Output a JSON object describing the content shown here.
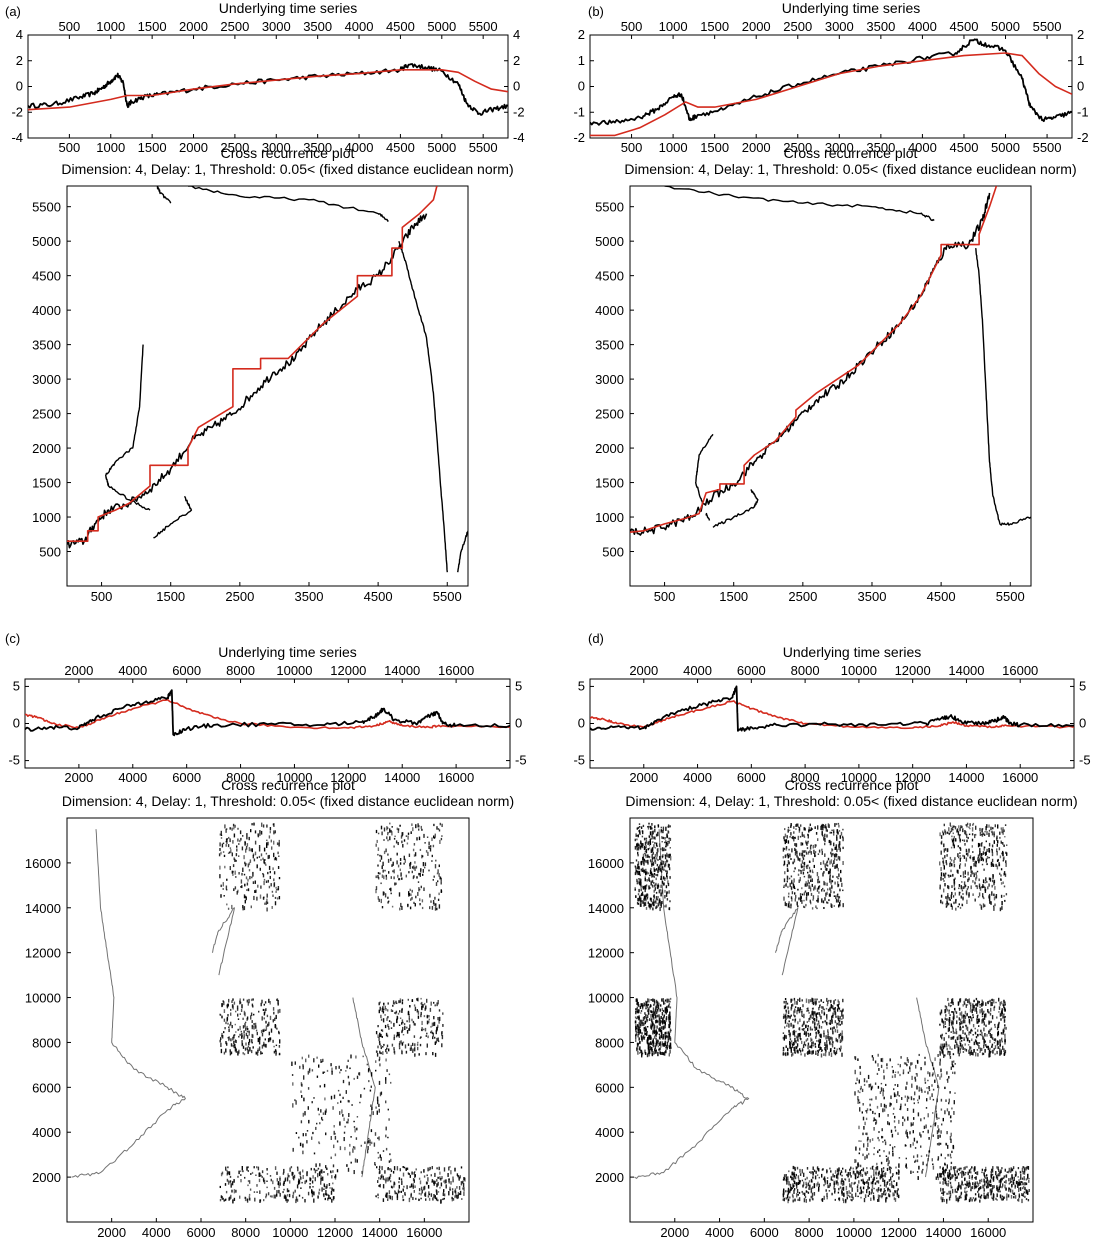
{
  "chart_data": [
    {
      "panel": "(a)",
      "type": "line",
      "subplot": "time-series",
      "title": "Underlying time series",
      "xlim": [
        0,
        5800
      ],
      "ylim": [
        -4,
        4
      ],
      "xticks": [
        500,
        1000,
        1500,
        2000,
        2500,
        3000,
        3500,
        4000,
        4500,
        5000,
        5500
      ],
      "yticks": [
        -4,
        -2,
        0,
        2,
        4
      ],
      "series": [
        {
          "color": "#000000",
          "x": [
            0,
            300,
            600,
            800,
            900,
            1000,
            1080,
            1150,
            1200,
            1250,
            1400,
            1600,
            2000,
            2500,
            3000,
            3500,
            4000,
            4500,
            4600,
            4800,
            5000,
            5200,
            5300,
            5450,
            5600,
            5800
          ],
          "y": [
            -1.5,
            -1.4,
            -0.9,
            -0.5,
            -0.1,
            0.4,
            0.9,
            0.3,
            -1.5,
            -1.2,
            -0.8,
            -0.6,
            -0.2,
            0.2,
            0.5,
            0.8,
            1.0,
            1.3,
            1.7,
            1.5,
            1.2,
            0.2,
            -1.3,
            -2.1,
            -1.8,
            -1.5
          ]
        },
        {
          "color": "#d42b1e",
          "x": [
            0,
            500,
            1000,
            1200,
            1500,
            2000,
            2500,
            3000,
            3500,
            4000,
            4500,
            5000,
            5200,
            5400,
            5600,
            5800
          ],
          "y": [
            -1.8,
            -1.6,
            -1.0,
            -0.7,
            -0.7,
            -0.2,
            0.2,
            0.5,
            0.8,
            1.0,
            1.3,
            1.3,
            1.1,
            0.4,
            -0.2,
            -0.4
          ]
        }
      ]
    },
    {
      "panel": "(a)",
      "type": "scatter",
      "subplot": "cross-recurrence",
      "title": "Cross recurrence plot",
      "subtitle": "Dimension: 4, Delay: 1, Threshold: 0.05< (fixed distance euclidean norm)",
      "xlim": [
        0,
        5800
      ],
      "ylim": [
        0,
        5800
      ],
      "xticks": [
        500,
        1500,
        2500,
        3500,
        4500,
        5500
      ],
      "yticks": [
        500,
        1000,
        1500,
        2000,
        2500,
        3000,
        3500,
        4000,
        4500,
        5000,
        5500
      ],
      "series": [
        {
          "color": "#000000",
          "x": [
            0,
            250,
            400,
            600,
            900,
            1200,
            1500,
            1800,
            2100,
            2400,
            2700,
            3000,
            3300,
            3600,
            3900,
            4200,
            4500,
            4800,
            5000,
            5200
          ],
          "y": [
            600,
            650,
            900,
            1100,
            1200,
            1400,
            1700,
            2100,
            2300,
            2500,
            2800,
            3100,
            3300,
            3700,
            4000,
            4300,
            4500,
            4900,
            5200,
            5400
          ]
        },
        {
          "color": "#d42b1e",
          "x": [
            0,
            300,
            300,
            450,
            450,
            700,
            900,
            1200,
            1200,
            1750,
            1750,
            1900,
            2400,
            2400,
            2800,
            2800,
            3200,
            3700,
            4200,
            4200,
            4700,
            4700,
            4850,
            4850,
            5100,
            5300,
            5350
          ],
          "y": [
            650,
            650,
            800,
            800,
            1000,
            1100,
            1200,
            1450,
            1750,
            1750,
            2000,
            2300,
            2600,
            3150,
            3150,
            3300,
            3300,
            3800,
            4200,
            4500,
            4500,
            4900,
            4900,
            5200,
            5400,
            5600,
            5800
          ]
        }
      ]
    },
    {
      "panel": "(b)",
      "type": "line",
      "subplot": "time-series",
      "title": "Underlying time series",
      "xlim": [
        0,
        5800
      ],
      "ylim": [
        -2,
        2
      ],
      "xticks": [
        500,
        1000,
        1500,
        2000,
        2500,
        3000,
        3500,
        4000,
        4500,
        5000,
        5500
      ],
      "yticks": [
        -2,
        -1,
        0,
        1,
        2
      ],
      "series": [
        {
          "color": "#000000",
          "x": [
            0,
            300,
            600,
            800,
            1000,
            1100,
            1200,
            1300,
            1600,
            2000,
            2500,
            3000,
            3500,
            4000,
            4400,
            4600,
            4800,
            5000,
            5200,
            5300,
            5450,
            5600,
            5800
          ],
          "y": [
            -1.4,
            -1.4,
            -1.2,
            -0.9,
            -0.4,
            -0.3,
            -1.3,
            -1.1,
            -0.9,
            -0.4,
            0.1,
            0.5,
            0.8,
            1.1,
            1.3,
            1.8,
            1.6,
            1.4,
            0.3,
            -0.8,
            -1.3,
            -1.2,
            -1.0
          ]
        },
        {
          "color": "#d42b1e",
          "x": [
            0,
            300,
            600,
            900,
            1150,
            1300,
            1500,
            2000,
            2500,
            3000,
            3500,
            4000,
            4500,
            5000,
            5200,
            5400,
            5600,
            5800
          ],
          "y": [
            -1.9,
            -1.9,
            -1.6,
            -1.1,
            -0.6,
            -0.8,
            -0.8,
            -0.5,
            0.0,
            0.5,
            0.8,
            1.0,
            1.2,
            1.3,
            1.2,
            0.5,
            0.0,
            -0.3
          ]
        }
      ]
    },
    {
      "panel": "(b)",
      "type": "scatter",
      "subplot": "cross-recurrence",
      "title": "Cross recurrence plot",
      "subtitle": "Dimension: 4, Delay: 1, Threshold: 0.05< (fixed distance euclidean norm)",
      "xlim": [
        0,
        5800
      ],
      "ylim": [
        0,
        5800
      ],
      "xticks": [
        500,
        1500,
        2500,
        3500,
        4500,
        5500
      ],
      "yticks": [
        500,
        1000,
        1500,
        2000,
        2500,
        3000,
        3500,
        4000,
        4500,
        5000,
        5500
      ],
      "series": [
        {
          "color": "#000000",
          "x": [
            0,
            300,
            600,
            900,
            1200,
            1500,
            1800,
            2100,
            2400,
            2700,
            3000,
            3300,
            3600,
            3900,
            4200,
            4400,
            4600,
            4900,
            5100,
            5200
          ],
          "y": [
            780,
            800,
            900,
            1000,
            1300,
            1480,
            1800,
            2100,
            2400,
            2700,
            2900,
            3200,
            3500,
            3800,
            4200,
            4600,
            4950,
            4950,
            5300,
            5700
          ]
        },
        {
          "color": "#d42b1e",
          "x": [
            0,
            200,
            500,
            800,
            1000,
            1100,
            1300,
            1300,
            1650,
            1650,
            1800,
            2100,
            2400,
            2400,
            2700,
            3000,
            3300,
            3600,
            3900,
            4200,
            4400,
            4500,
            4500,
            5050,
            5050,
            5200,
            5300
          ],
          "y": [
            780,
            800,
            900,
            980,
            1050,
            1350,
            1400,
            1480,
            1480,
            1750,
            1900,
            2100,
            2450,
            2550,
            2800,
            3000,
            3200,
            3500,
            3800,
            4200,
            4600,
            4800,
            4950,
            4950,
            5100,
            5500,
            5800
          ]
        }
      ]
    },
    {
      "panel": "(c)",
      "type": "line",
      "subplot": "time-series",
      "title": "Underlying time series",
      "xlim": [
        0,
        18000
      ],
      "ylim": [
        -6,
        6
      ],
      "xticks": [
        2000,
        4000,
        6000,
        8000,
        10000,
        12000,
        14000,
        16000
      ],
      "yticks": [
        -5,
        0,
        5
      ],
      "series": [
        {
          "color": "#000000",
          "x": [
            0,
            1000,
            2000,
            2500,
            3500,
            4500,
            5300,
            5450,
            5500,
            6000,
            7000,
            9000,
            11000,
            12500,
            13000,
            13300,
            13700,
            14500,
            15000,
            15300,
            15500,
            16000,
            18000
          ],
          "y": [
            -0.8,
            -0.5,
            -0.6,
            0.5,
            2.0,
            3.0,
            3.5,
            4.5,
            -1.5,
            -0.7,
            -0.2,
            -0.1,
            -0.2,
            0.2,
            1.0,
            2.0,
            0.5,
            0.0,
            1.0,
            1.5,
            0.0,
            -0.3,
            -0.3
          ]
        },
        {
          "color": "#d42b1e",
          "x": [
            0,
            500,
            1000,
            2000,
            3000,
            4000,
            5300,
            6000,
            7000,
            8000,
            10000,
            12000,
            13000,
            13500,
            14000,
            15000,
            15500,
            18000
          ],
          "y": [
            1.2,
            0.8,
            0.0,
            -0.6,
            0.8,
            2.0,
            3.2,
            2.0,
            0.8,
            0.0,
            -0.5,
            -0.6,
            -0.3,
            0.3,
            -0.3,
            -0.5,
            -0.3,
            -0.5
          ]
        }
      ]
    },
    {
      "panel": "(c)",
      "type": "scatter",
      "subplot": "cross-recurrence",
      "title": "Cross recurrence plot",
      "subtitle": "Dimension: 4, Delay: 1, Threshold: 0.05< (fixed distance euclidean norm)",
      "xlim": [
        0,
        18000
      ],
      "ylim": [
        0,
        18000
      ],
      "xticks": [
        2000,
        4000,
        6000,
        8000,
        10000,
        12000,
        14000,
        16000
      ],
      "yticks": [
        2000,
        4000,
        6000,
        8000,
        10000,
        12000,
        14000,
        16000
      ],
      "series": []
    },
    {
      "panel": "(d)",
      "type": "line",
      "subplot": "time-series",
      "title": "Underlying time series",
      "xlim": [
        0,
        18000
      ],
      "ylim": [
        -6,
        6
      ],
      "xticks": [
        2000,
        4000,
        6000,
        8000,
        10000,
        12000,
        14000,
        16000
      ],
      "yticks": [
        -5,
        0,
        5
      ],
      "series": [
        {
          "color": "#000000",
          "x": [
            0,
            1000,
            2000,
            2500,
            3500,
            4500,
            5300,
            5450,
            5500,
            6000,
            7000,
            9000,
            11000,
            12500,
            13000,
            13400,
            13800,
            14500,
            15000,
            15400,
            15600,
            16000,
            18000
          ],
          "y": [
            -0.6,
            -0.4,
            -0.6,
            0.5,
            1.8,
            2.8,
            3.5,
            5.0,
            -1.0,
            -0.5,
            -0.2,
            -0.1,
            -0.2,
            0.0,
            0.5,
            1.0,
            0.3,
            0.0,
            0.3,
            0.9,
            0.0,
            -0.2,
            -0.3
          ]
        },
        {
          "color": "#d42b1e",
          "x": [
            0,
            500,
            1000,
            2000,
            3000,
            4000,
            5300,
            6000,
            7000,
            8000,
            10000,
            12000,
            13000,
            13500,
            14000,
            15000,
            15500,
            18000
          ],
          "y": [
            0.8,
            0.6,
            0.0,
            -0.5,
            0.8,
            1.8,
            3.0,
            2.0,
            0.8,
            0.0,
            -0.5,
            -0.6,
            -0.3,
            0.2,
            -0.3,
            -0.5,
            -0.3,
            -0.5
          ]
        }
      ]
    },
    {
      "panel": "(d)",
      "type": "scatter",
      "subplot": "cross-recurrence",
      "title": "Cross recurrence plot",
      "subtitle": "Dimension: 4, Delay: 1, Threshold: 0.05< (fixed distance euclidean norm)",
      "xlim": [
        0,
        18000
      ],
      "ylim": [
        0,
        18000
      ],
      "xticks": [
        2000,
        4000,
        6000,
        8000,
        10000,
        12000,
        14000,
        16000
      ],
      "yticks": [
        2000,
        4000,
        6000,
        8000,
        10000,
        12000,
        14000,
        16000
      ],
      "series": []
    }
  ]
}
